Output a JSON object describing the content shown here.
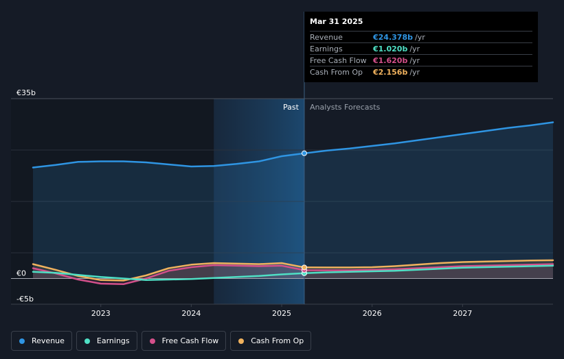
{
  "tooltip": {
    "date": "Mar 31 2025",
    "rows": [
      {
        "label": "Revenue",
        "value": "€24.378b",
        "unit": "/yr",
        "color": "#2f95e3"
      },
      {
        "label": "Earnings",
        "value": "€1.020b",
        "unit": "/yr",
        "color": "#4fe0c5"
      },
      {
        "label": "Free Cash Flow",
        "value": "€1.620b",
        "unit": "/yr",
        "color": "#d4508b"
      },
      {
        "label": "Cash From Op",
        "value": "€2.156b",
        "unit": "/yr",
        "color": "#f0b25e"
      }
    ]
  },
  "legend": [
    {
      "label": "Revenue",
      "color": "#2f95e3"
    },
    {
      "label": "Earnings",
      "color": "#4fe0c5"
    },
    {
      "label": "Free Cash Flow",
      "color": "#d4508b"
    },
    {
      "label": "Cash From Op",
      "color": "#f0b25e"
    }
  ],
  "chart_data": {
    "type": "line",
    "title": "",
    "xlabel": "",
    "ylabel": "",
    "xlim": [
      2022.25,
      2028.0
    ],
    "ylim": [
      -5,
      35
    ],
    "y_tick_labels": [
      {
        "value": 35,
        "label": "€35b"
      },
      {
        "value": 0,
        "label": "€0"
      },
      {
        "value": -5,
        "label": "-€5b"
      }
    ],
    "x_tick_labels": [
      {
        "value": 2023,
        "label": "2023"
      },
      {
        "value": 2024,
        "label": "2024"
      },
      {
        "value": 2025,
        "label": "2025"
      },
      {
        "value": 2026,
        "label": "2026"
      },
      {
        "value": 2027,
        "label": "2027"
      }
    ],
    "divider_x": 2025.25,
    "shade_start_x": 2024.25,
    "region_labels": {
      "past": "Past",
      "forecast": "Analysts Forecasts"
    },
    "grid": true,
    "legend_position": "bottom",
    "highlight": {
      "x": 2025.25
    },
    "series": [
      {
        "name": "Revenue",
        "color": "#2f95e3",
        "area": true,
        "points": [
          [
            2022.25,
            21.6
          ],
          [
            2022.5,
            22.1
          ],
          [
            2022.75,
            22.7
          ],
          [
            2023.0,
            22.8
          ],
          [
            2023.25,
            22.8
          ],
          [
            2023.5,
            22.6
          ],
          [
            2023.75,
            22.2
          ],
          [
            2024.0,
            21.8
          ],
          [
            2024.25,
            21.9
          ],
          [
            2024.5,
            22.3
          ],
          [
            2024.75,
            22.8
          ],
          [
            2025.0,
            23.8
          ],
          [
            2025.25,
            24.38
          ],
          [
            2025.5,
            24.9
          ],
          [
            2025.75,
            25.3
          ],
          [
            2026.0,
            25.8
          ],
          [
            2026.25,
            26.3
          ],
          [
            2026.5,
            26.9
          ],
          [
            2026.75,
            27.5
          ],
          [
            2027.0,
            28.1
          ],
          [
            2027.25,
            28.7
          ],
          [
            2027.5,
            29.3
          ],
          [
            2027.75,
            29.8
          ],
          [
            2028.0,
            30.4
          ]
        ]
      },
      {
        "name": "Earnings",
        "color": "#4fe0c5",
        "area": false,
        "points": [
          [
            2022.25,
            1.3
          ],
          [
            2022.5,
            1.1
          ],
          [
            2022.75,
            0.7
          ],
          [
            2023.0,
            0.3
          ],
          [
            2023.25,
            0.0
          ],
          [
            2023.5,
            -0.3
          ],
          [
            2023.75,
            -0.2
          ],
          [
            2024.0,
            -0.1
          ],
          [
            2024.25,
            0.1
          ],
          [
            2024.5,
            0.3
          ],
          [
            2024.75,
            0.5
          ],
          [
            2025.0,
            0.8
          ],
          [
            2025.25,
            1.02
          ],
          [
            2025.5,
            1.2
          ],
          [
            2025.75,
            1.3
          ],
          [
            2026.0,
            1.4
          ],
          [
            2026.25,
            1.5
          ],
          [
            2026.5,
            1.7
          ],
          [
            2026.75,
            1.9
          ],
          [
            2027.0,
            2.1
          ],
          [
            2027.25,
            2.2
          ],
          [
            2027.5,
            2.3
          ],
          [
            2027.75,
            2.4
          ],
          [
            2028.0,
            2.5
          ]
        ]
      },
      {
        "name": "Free Cash Flow",
        "color": "#d4508b",
        "area": true,
        "points": [
          [
            2022.25,
            2.0
          ],
          [
            2022.5,
            1.0
          ],
          [
            2022.75,
            -0.2
          ],
          [
            2023.0,
            -1.0
          ],
          [
            2023.25,
            -1.1
          ],
          [
            2023.5,
            0.0
          ],
          [
            2023.75,
            1.5
          ],
          [
            2024.0,
            2.2
          ],
          [
            2024.25,
            2.6
          ],
          [
            2024.5,
            2.5
          ],
          [
            2024.75,
            2.4
          ],
          [
            2025.0,
            2.5
          ],
          [
            2025.25,
            1.62
          ],
          [
            2025.5,
            1.6
          ],
          [
            2025.75,
            1.6
          ],
          [
            2026.0,
            1.7
          ],
          [
            2026.25,
            1.8
          ],
          [
            2026.5,
            2.0
          ],
          [
            2026.75,
            2.2
          ],
          [
            2027.0,
            2.4
          ],
          [
            2027.25,
            2.5
          ],
          [
            2027.5,
            2.6
          ],
          [
            2027.75,
            2.7
          ],
          [
            2028.0,
            2.8
          ]
        ]
      },
      {
        "name": "Cash From Op",
        "color": "#f0b25e",
        "area": true,
        "points": [
          [
            2022.25,
            2.8
          ],
          [
            2022.5,
            1.7
          ],
          [
            2022.75,
            0.5
          ],
          [
            2023.0,
            -0.3
          ],
          [
            2023.25,
            -0.4
          ],
          [
            2023.5,
            0.6
          ],
          [
            2023.75,
            2.0
          ],
          [
            2024.0,
            2.7
          ],
          [
            2024.25,
            3.0
          ],
          [
            2024.5,
            2.9
          ],
          [
            2024.75,
            2.8
          ],
          [
            2025.0,
            3.0
          ],
          [
            2025.25,
            2.156
          ],
          [
            2025.5,
            2.15
          ],
          [
            2025.75,
            2.15
          ],
          [
            2026.0,
            2.2
          ],
          [
            2026.25,
            2.4
          ],
          [
            2026.5,
            2.7
          ],
          [
            2026.75,
            3.0
          ],
          [
            2027.0,
            3.2
          ],
          [
            2027.25,
            3.3
          ],
          [
            2027.5,
            3.4
          ],
          [
            2027.75,
            3.5
          ],
          [
            2028.0,
            3.55
          ]
        ]
      }
    ]
  }
}
